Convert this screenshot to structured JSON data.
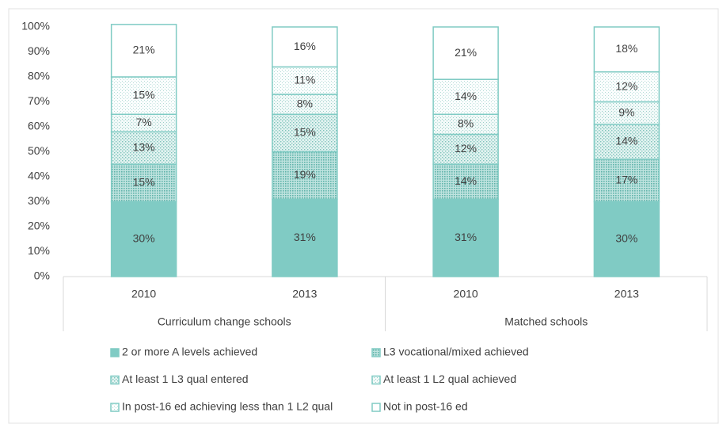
{
  "chart_data": {
    "type": "stacked_bar",
    "categories": [
      "2010",
      "2013",
      "2010",
      "2013"
    ],
    "groups": [
      "Curriculum change schools",
      "Matched schools"
    ],
    "ylim": [
      0,
      100
    ],
    "yticks": [
      {
        "value": 0,
        "label": "0%"
      },
      {
        "value": 10,
        "label": "10%"
      },
      {
        "value": 20,
        "label": "20%"
      },
      {
        "value": 30,
        "label": "30%"
      },
      {
        "value": 40,
        "label": "40%"
      },
      {
        "value": 50,
        "label": "50%"
      },
      {
        "value": 60,
        "label": "60%"
      },
      {
        "value": 70,
        "label": "70%"
      },
      {
        "value": 80,
        "label": "80%"
      },
      {
        "value": 90,
        "label": "90%"
      },
      {
        "value": 100,
        "label": "100%"
      }
    ],
    "grid": false,
    "legend": "bottom",
    "series": [
      {
        "name": "2 or more A levels achieved",
        "color": "#80cbc4",
        "values": [
          30,
          31,
          31,
          30
        ],
        "value_labels": [
          "30%",
          "31%",
          "31%",
          "30%"
        ]
      },
      {
        "name": "L3 vocational/mixed achieved",
        "color": "#80cbc4",
        "values": [
          15,
          19,
          14,
          17
        ],
        "value_labels": [
          "15%",
          "19%",
          "14%",
          "17%"
        ]
      },
      {
        "name": "At least 1 L3 qual entered",
        "color": "#80cbc4",
        "values": [
          13,
          15,
          12,
          14
        ],
        "value_labels": [
          "13%",
          "15%",
          "12%",
          "14%"
        ]
      },
      {
        "name": "At least 1 L2 qual achieved",
        "color": "#80cbc4",
        "values": [
          7,
          8,
          8,
          9
        ],
        "value_labels": [
          "7%",
          "8%",
          "8%",
          "9%"
        ]
      },
      {
        "name": "In post-16 ed achieving less than 1 L2 qual",
        "color": "#80cbc4",
        "values": [
          15,
          11,
          14,
          12
        ],
        "value_labels": [
          "15%",
          "11%",
          "14%",
          "12%"
        ]
      },
      {
        "name": "Not in post-16 ed",
        "color": "#80cbc4",
        "values": [
          21,
          16,
          21,
          18
        ],
        "value_labels": [
          "21%",
          "16%",
          "21%",
          "18%"
        ]
      }
    ]
  }
}
